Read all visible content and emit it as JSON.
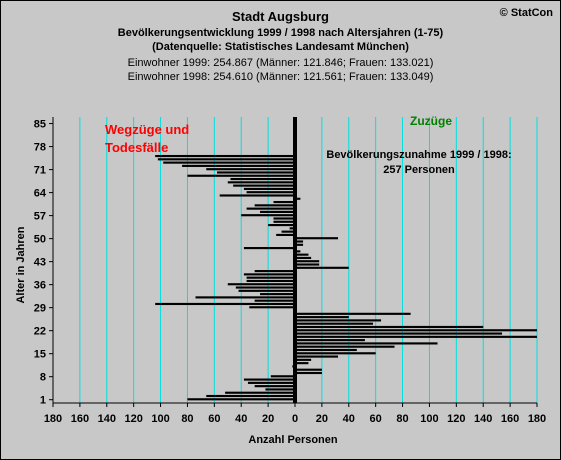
{
  "header": {
    "title": "Stadt Augsburg",
    "subtitle": "Bevölkerungsentwicklung 1999 / 1998  nach Altersjahren (1-75)",
    "source": "(Datenquelle: Statistisches Landesamt München)",
    "population_1999": "Einwohner 1999: 254.867  (Männer: 121.846; Frauen: 133.021)",
    "population_1998": "Einwohner 1998: 254.610  (Männer: 121.561; Frauen: 133.049)",
    "copyright": "© StatCon"
  },
  "chart_data": {
    "type": "bar",
    "orientation": "horizontal-diverging",
    "xlabel": "Anzahl Personen",
    "ylabel": "Alter in Jahren",
    "xlim": [
      -180,
      180
    ],
    "ylim": [
      0,
      87
    ],
    "x_tick_labels": [
      "180",
      "160",
      "140",
      "120",
      "100",
      "80",
      "60",
      "40",
      "20",
      "0",
      "20",
      "40",
      "60",
      "80",
      "100",
      "120",
      "140",
      "160",
      "180"
    ],
    "y_ticks": [
      1,
      8,
      15,
      22,
      29,
      36,
      43,
      50,
      57,
      64,
      71,
      78,
      85
    ],
    "grid": "vertical",
    "annotations": {
      "left": "Wegzüge und Todesfälle",
      "right": "Zuzüge",
      "summary": "Bevölkerungszunahme 1999 / 1998: 257 Personen"
    },
    "colors": {
      "bars": "#000000",
      "grid": "#00e0e0",
      "left_label": "#ff0000",
      "right_label": "#008000",
      "plot_background": "#c8c8c8"
    },
    "ages": [
      1,
      2,
      3,
      4,
      5,
      6,
      7,
      8,
      9,
      10,
      11,
      12,
      13,
      14,
      15,
      16,
      17,
      18,
      19,
      20,
      21,
      22,
      23,
      24,
      25,
      26,
      27,
      28,
      29,
      30,
      31,
      32,
      33,
      34,
      35,
      36,
      37,
      38,
      39,
      40,
      41,
      42,
      43,
      44,
      45,
      46,
      47,
      48,
      49,
      50,
      51,
      52,
      53,
      54,
      55,
      56,
      57,
      58,
      59,
      60,
      61,
      62,
      63,
      64,
      65,
      66,
      67,
      68,
      69,
      70,
      71,
      72,
      73,
      74,
      75
    ],
    "values": [
      -80,
      -66,
      -52,
      -22,
      -30,
      -35,
      -38,
      -18,
      20,
      20,
      -2,
      10,
      12,
      32,
      60,
      46,
      74,
      106,
      52,
      180,
      154,
      180,
      140,
      58,
      64,
      40,
      86,
      0,
      -34,
      -104,
      -30,
      -74,
      -26,
      -42,
      -44,
      -50,
      -36,
      -36,
      -38,
      -30,
      40,
      18,
      18,
      12,
      10,
      4,
      -38,
      6,
      6,
      32,
      -14,
      -10,
      -4,
      -20,
      -16,
      -16,
      -40,
      -26,
      -36,
      -30,
      -16,
      4,
      -56,
      -36,
      -38,
      -46,
      -50,
      -48,
      -80,
      -58,
      -66,
      -84,
      -98,
      -102,
      -104
    ]
  }
}
